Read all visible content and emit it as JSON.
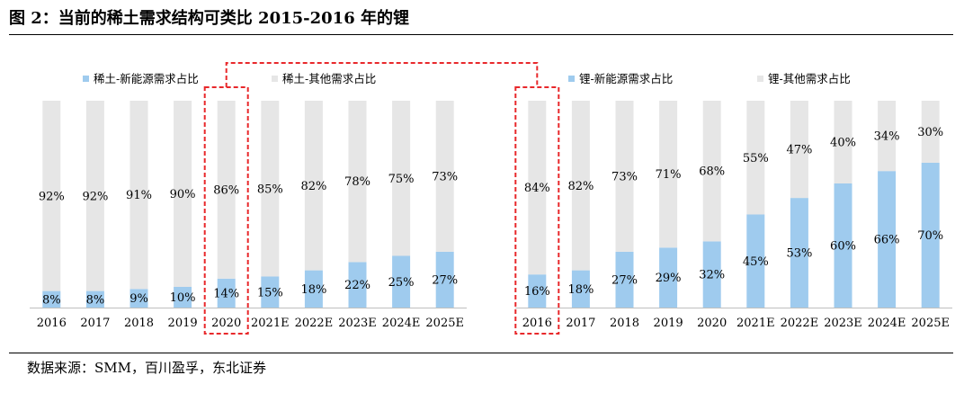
{
  "figure": {
    "title": "图 2：当前的稀土需求结构可类比 2015-2016 年的锂",
    "source": "数据来源：SMM，百川盈孚，东北证券"
  },
  "colors": {
    "new_energy": "#9fcbee",
    "other": "#e6e6e6",
    "highlight": "#e8282b",
    "text": "#000000"
  },
  "chart_data": [
    {
      "type": "bar",
      "stacked": true,
      "normalized": true,
      "categories": [
        "2016",
        "2017",
        "2018",
        "2019",
        "2020",
        "2021E",
        "2022E",
        "2023E",
        "2024E",
        "2025E"
      ],
      "series": [
        {
          "name": "稀土-新能源需求占比",
          "values": [
            8,
            8,
            9,
            10,
            14,
            15,
            18,
            22,
            25,
            27
          ],
          "labels": [
            "8%",
            "8%",
            "9%",
            "10%",
            "14%",
            "15%",
            "18%",
            "22%",
            "25%",
            "27%"
          ]
        },
        {
          "name": "稀土-其他需求占比",
          "values": [
            92,
            92,
            91,
            90,
            86,
            85,
            82,
            78,
            75,
            73
          ],
          "labels": [
            "92%",
            "92%",
            "91%",
            "90%",
            "86%",
            "85%",
            "82%",
            "78%",
            "75%",
            "73%"
          ]
        }
      ],
      "ylim": [
        0,
        100
      ],
      "legend": "top",
      "highlight_category": "2020"
    },
    {
      "type": "bar",
      "stacked": true,
      "normalized": true,
      "categories": [
        "2016",
        "2017",
        "2018",
        "2019",
        "2020",
        "2021E",
        "2022E",
        "2023E",
        "2024E",
        "2025E"
      ],
      "series": [
        {
          "name": "锂-新能源需求占比",
          "values": [
            16,
            18,
            27,
            29,
            32,
            45,
            53,
            60,
            66,
            70
          ],
          "labels": [
            "16%",
            "18%",
            "27%",
            "29%",
            "32%",
            "45%",
            "53%",
            "60%",
            "66%",
            "70%"
          ]
        },
        {
          "name": "锂-其他需求占比",
          "values": [
            84,
            82,
            73,
            71,
            68,
            55,
            47,
            40,
            34,
            30
          ],
          "labels": [
            "84%",
            "82%",
            "73%",
            "71%",
            "68%",
            "55%",
            "47%",
            "40%",
            "34%",
            "30%"
          ]
        }
      ],
      "ylim": [
        0,
        100
      ],
      "legend": "top",
      "highlight_category": "2016"
    }
  ]
}
